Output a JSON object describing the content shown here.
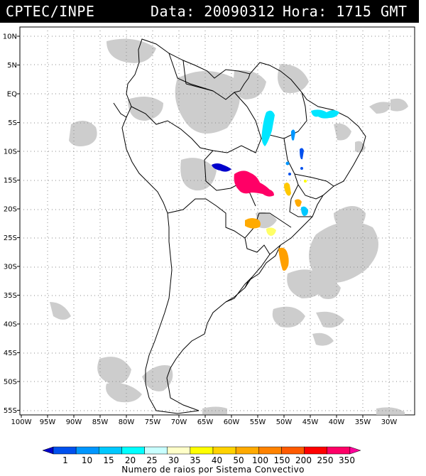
{
  "header": {
    "source": "CPTEC/INPE",
    "date_label": "Data: 20090312",
    "time_label": "Hora: 1715 GMT"
  },
  "map": {
    "lat_labels": [
      "10N",
      "5N",
      "EQ",
      "5S",
      "10S",
      "15S",
      "20S",
      "25S",
      "30S",
      "35S",
      "40S",
      "45S",
      "50S",
      "55S"
    ],
    "lon_labels": [
      "100W",
      "95W",
      "90W",
      "85W",
      "80W",
      "75W",
      "70W",
      "65W",
      "60W",
      "55W",
      "50W",
      "45W",
      "40W",
      "35W",
      "30W"
    ],
    "colors": {
      "land_outline": "#000000",
      "cloud": "#c8c8c8",
      "grid": "#8a8a8a"
    }
  },
  "colorbar": {
    "values": [
      "1",
      "10",
      "15",
      "20",
      "25",
      "30",
      "35",
      "40",
      "50",
      "100",
      "150",
      "200",
      "250",
      "350"
    ],
    "colors": [
      "#0000cc",
      "#0050ee",
      "#0096ff",
      "#00c8ff",
      "#00ffff",
      "#c8ffff",
      "#ffffc8",
      "#ffff00",
      "#ffd200",
      "#ffaa00",
      "#ff8200",
      "#ff5a00",
      "#ff0000",
      "#ff0066",
      "#ff0099"
    ],
    "title": "Numero de raios por Sistema Convectivo"
  }
}
